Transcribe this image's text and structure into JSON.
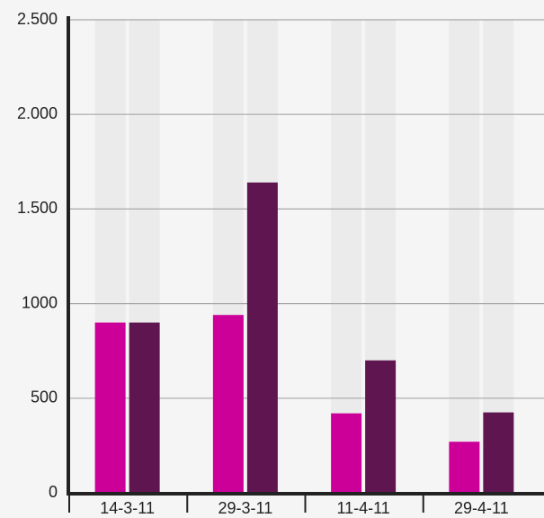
{
  "chart_data": {
    "type": "bar",
    "categories": [
      "14-3-11",
      "29-3-11",
      "11-4-11",
      "29-4-11"
    ],
    "series": [
      {
        "color": "#cc0099",
        "values": [
          900,
          940,
          420,
          270
        ]
      },
      {
        "color": "#5f1650",
        "values": [
          900,
          1640,
          700,
          425
        ]
      }
    ],
    "ylim": [
      0,
      2500
    ],
    "yticks": [
      0,
      500,
      1000,
      {
        "value": 1500,
        "label": "1.500"
      },
      {
        "value": 2000,
        "label": "2.000"
      },
      {
        "value": 2500,
        "label": "2.500"
      }
    ],
    "grid": true
  }
}
